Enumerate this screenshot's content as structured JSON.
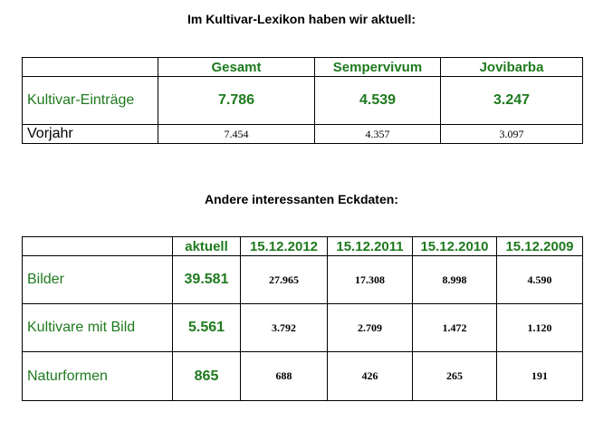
{
  "title1": "Im Kultivar-Lexikon haben wir aktuell:",
  "table1": {
    "header": [
      "Gesamt",
      "Sempervivum",
      "Jovibarba"
    ],
    "rows": [
      {
        "label": "Kultivar-Einträge",
        "values": [
          "7.786",
          "4.539",
          "3.247"
        ]
      },
      {
        "label": "Vorjahr",
        "values": [
          "7.454",
          "4.357",
          "3.097"
        ]
      }
    ]
  },
  "title2": "Andere interessanten Eckdaten:",
  "table2": {
    "header": [
      "aktuell",
      "15.12.2012",
      "15.12.2011",
      "15.12.2010",
      "15.12.2009"
    ],
    "rows": [
      {
        "label": "Bilder",
        "values": [
          "39.581",
          "27.965",
          "17.308",
          "8.998",
          "4.590"
        ]
      },
      {
        "label": "Kultivare mit Bild",
        "values": [
          "5.561",
          "3.792",
          "2.709",
          "1.472",
          "1.120"
        ]
      },
      {
        "label": "Naturformen",
        "values": [
          "865",
          "688",
          "426",
          "265",
          "191"
        ]
      }
    ]
  }
}
